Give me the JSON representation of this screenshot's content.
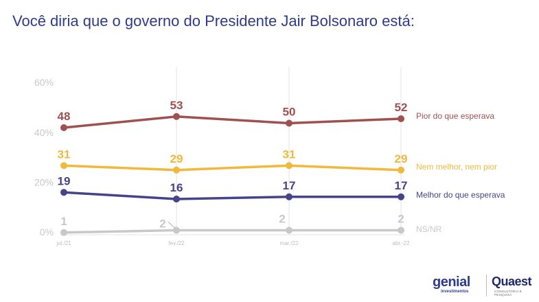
{
  "title": "Você diria que o governo do Presidente Jair Bolsonaro está:",
  "chart_data": {
    "type": "line",
    "title": "Você diria que o governo do Presidente Jair Bolsonaro está:",
    "x": [
      "jul./21",
      "fev./22",
      "mar./22",
      "abr.-22"
    ],
    "yticks": [
      "0%",
      "20%",
      "40%",
      "60%"
    ],
    "ylim": [
      0,
      60
    ],
    "grid": "vertical",
    "legend": "right",
    "series": [
      {
        "name": "Pior do que esperava",
        "color": "#a0504f",
        "values": [
          48,
          53,
          50,
          52
        ]
      },
      {
        "name": "Nem melhor, nem pior",
        "color": "#f0b93a",
        "values": [
          31,
          29,
          31,
          29
        ]
      },
      {
        "name": "Melhor do que esperava",
        "color": "#45438a",
        "values": [
          19,
          16,
          17,
          17
        ]
      },
      {
        "name": "NS/NR",
        "color": "#c8c8c8",
        "values": [
          1,
          2,
          2,
          2
        ]
      }
    ]
  },
  "logos": {
    "genial": "genial",
    "genial_sub": "investimentos",
    "quaest": "Quaest",
    "quaest_sub": "CONSULTORIA E PESQUISA"
  }
}
